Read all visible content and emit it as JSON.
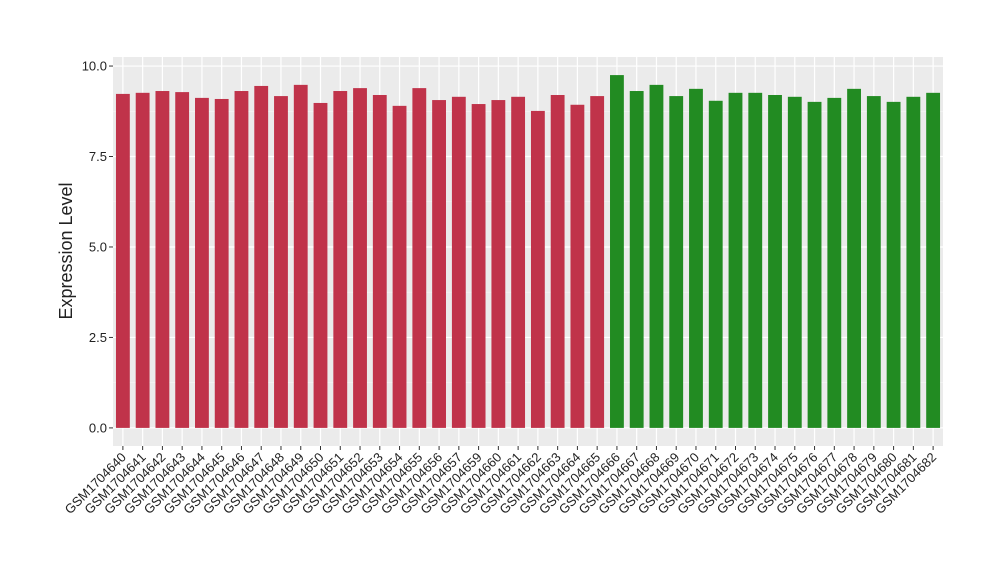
{
  "chart_data": {
    "type": "bar",
    "y_label": "Expression Level",
    "categories": [
      "GSM1704640",
      "GSM1704641",
      "GSM1704642",
      "GSM1704643",
      "GSM1704644",
      "GSM1704645",
      "GSM1704646",
      "GSM1704647",
      "GSM1704648",
      "GSM1704649",
      "GSM1704650",
      "GSM1704651",
      "GSM1704652",
      "GSM1704653",
      "GSM1704654",
      "GSM1704655",
      "GSM1704656",
      "GSM1704657",
      "GSM1704659",
      "GSM1704660",
      "GSM1704661",
      "GSM1704662",
      "GSM1704663",
      "GSM1704664",
      "GSM1704665",
      "GSM1704666",
      "GSM1704667",
      "GSM1704668",
      "GSM1704669",
      "GSM1704670",
      "GSM1704671",
      "GSM1704672",
      "GSM1704673",
      "GSM1704674",
      "GSM1704675",
      "GSM1704676",
      "GSM1704677",
      "GSM1704678",
      "GSM1704679",
      "GSM1704680",
      "GSM1704681",
      "GSM1704682"
    ],
    "values": [
      9.23,
      9.26,
      9.31,
      9.28,
      9.12,
      9.09,
      9.31,
      9.45,
      9.17,
      9.48,
      8.98,
      9.31,
      9.39,
      9.2,
      8.9,
      9.39,
      9.06,
      9.15,
      8.95,
      9.06,
      9.15,
      8.76,
      9.2,
      8.93,
      9.17,
      9.75,
      9.31,
      9.48,
      9.17,
      9.37,
      9.04,
      9.26,
      9.26,
      9.2,
      9.15,
      9.01,
      9.12,
      9.37,
      9.17,
      9.01,
      9.15,
      9.26
    ],
    "colors": [
      "#c0334a",
      "#c0334a",
      "#c0334a",
      "#c0334a",
      "#c0334a",
      "#c0334a",
      "#c0334a",
      "#c0334a",
      "#c0334a",
      "#c0334a",
      "#c0334a",
      "#c0334a",
      "#c0334a",
      "#c0334a",
      "#c0334a",
      "#c0334a",
      "#c0334a",
      "#c0334a",
      "#c0334a",
      "#c0334a",
      "#c0334a",
      "#c0334a",
      "#c0334a",
      "#c0334a",
      "#c0334a",
      "#228b22",
      "#228b22",
      "#228b22",
      "#228b22",
      "#228b22",
      "#228b22",
      "#228b22",
      "#228b22",
      "#228b22",
      "#228b22",
      "#228b22",
      "#228b22",
      "#228b22",
      "#228b22",
      "#228b22",
      "#228b22",
      "#228b22"
    ],
    "ylim": [
      -0.5,
      10.25
    ],
    "yticks": [
      {
        "value": 0,
        "label": "0.0"
      },
      {
        "value": 2.5,
        "label": "2.5"
      },
      {
        "value": 5,
        "label": "5.0"
      },
      {
        "value": 7.5,
        "label": "7.5"
      },
      {
        "value": 10,
        "label": "10.0"
      }
    ],
    "grid": true
  }
}
